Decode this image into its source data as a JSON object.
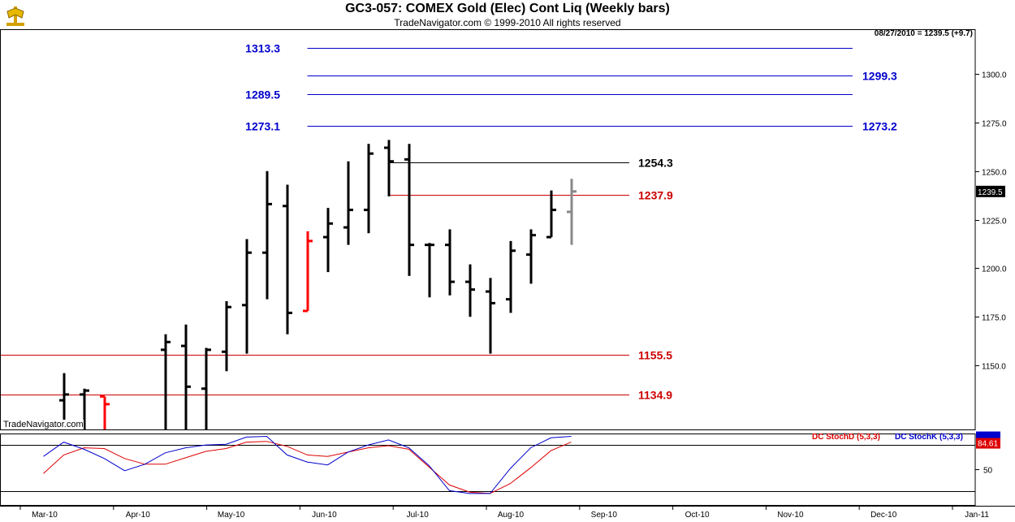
{
  "header": {
    "title": "GC3-057:  COMEX Gold (Elec) Cont Liq  (Weekly bars)",
    "subtitle": "TradeNavigator.com © 1999-2010 All rights reserved",
    "last_info": "08/27/2010 = 1239.5 (+9.7)"
  },
  "watermark": "TradeNavigator.com",
  "chart_data": [
    {
      "type": "ohlc",
      "title": "GC3-057:  COMEX Gold (Elec) Cont Liq  (Weekly bars)",
      "ylim": [
        1117,
        1323
      ],
      "y_ticks": [
        1150.0,
        1175.0,
        1200.0,
        1225.0,
        1250.0,
        1275.0,
        1300.0
      ],
      "y_tick_labels": [
        "1150.0",
        "1175.0",
        "1200.0",
        "1225.0",
        "1250.0",
        "1275.0",
        "1300.0"
      ],
      "x_labels": [
        "Mar-10",
        "Apr-10",
        "May-10",
        "Jun-10",
        "Jul-10",
        "Aug-10",
        "Sep-10",
        "Oct-10",
        "Nov-10",
        "Dec-10",
        "Jan-11"
      ],
      "last_price_label": "1239.5",
      "colors": {
        "up": "#000000",
        "highlight": "#ff0000",
        "current": "#888888",
        "blue_level": "#0000cc",
        "red_level": "#cc0000"
      },
      "bars": [
        {
          "week": 2,
          "o": 1132.0,
          "h": 1146.0,
          "l": 1117.0,
          "c": 1135.0,
          "color": "black"
        },
        {
          "week": 3,
          "o": 1135.0,
          "h": 1138.0,
          "l": 1117.0,
          "c": 1137.0,
          "color": "black"
        },
        {
          "week": 4,
          "o": 1134.0,
          "h": 1134.0,
          "l": 1117.0,
          "c": 1130.0,
          "color": "red"
        },
        {
          "week": 7,
          "o": 1158.0,
          "h": 1166.0,
          "l": 1117.0,
          "c": 1162.0,
          "color": "black"
        },
        {
          "week": 8,
          "o": 1160.0,
          "h": 1171.0,
          "l": 1117.0,
          "c": 1139.0,
          "color": "black"
        },
        {
          "week": 9,
          "o": 1138.0,
          "h": 1159.0,
          "l": 1117.0,
          "c": 1158.0,
          "color": "black"
        },
        {
          "week": 10,
          "o": 1157.0,
          "h": 1183.0,
          "l": 1147.0,
          "c": 1180.0,
          "color": "black"
        },
        {
          "week": 11,
          "o": 1181.0,
          "h": 1215.0,
          "l": 1156.0,
          "c": 1208.0,
          "color": "black"
        },
        {
          "week": 12,
          "o": 1208.0,
          "h": 1250.0,
          "l": 1184.0,
          "c": 1233.0,
          "color": "black"
        },
        {
          "week": 13,
          "o": 1232.0,
          "h": 1243.0,
          "l": 1166.0,
          "c": 1177.0,
          "color": "black"
        },
        {
          "week": 14,
          "o": 1178.0,
          "h": 1219.0,
          "l": 1178.0,
          "c": 1214.0,
          "color": "red"
        },
        {
          "week": 15,
          "o": 1216.0,
          "h": 1231.0,
          "l": 1198.0,
          "c": 1223.0,
          "color": "black"
        },
        {
          "week": 16,
          "o": 1221.0,
          "h": 1255.0,
          "l": 1212.0,
          "c": 1230.0,
          "color": "black"
        },
        {
          "week": 17,
          "o": 1230.0,
          "h": 1264.0,
          "l": 1218.0,
          "c": 1259.0,
          "color": "black"
        },
        {
          "week": 18,
          "o": 1262.0,
          "h": 1266.0,
          "l": 1237.0,
          "c": 1255.0,
          "color": "black"
        },
        {
          "week": 19,
          "o": 1256.0,
          "h": 1264.0,
          "l": 1196.0,
          "c": 1212.0,
          "color": "black"
        },
        {
          "week": 20,
          "o": 1212.0,
          "h": 1213.0,
          "l": 1185.0,
          "c": 1212.0,
          "color": "black"
        },
        {
          "week": 21,
          "o": 1212.0,
          "h": 1220.0,
          "l": 1186.0,
          "c": 1193.0,
          "color": "black"
        },
        {
          "week": 22,
          "o": 1193.0,
          "h": 1202.0,
          "l": 1175.0,
          "c": 1189.0,
          "color": "black"
        },
        {
          "week": 23,
          "o": 1188.0,
          "h": 1195.0,
          "l": 1156.0,
          "c": 1182.0,
          "color": "black"
        },
        {
          "week": 24,
          "o": 1184.0,
          "h": 1214.0,
          "l": 1177.0,
          "c": 1209.0,
          "color": "black"
        },
        {
          "week": 25,
          "o": 1207.0,
          "h": 1220.0,
          "l": 1192.0,
          "c": 1217.0,
          "color": "black"
        },
        {
          "week": 26,
          "o": 1216.0,
          "h": 1240.0,
          "l": 1216.0,
          "c": 1230.0,
          "color": "black"
        },
        {
          "week": 27,
          "o": 1229.0,
          "h": 1246.0,
          "l": 1212.0,
          "c": 1239.5,
          "color": "gray"
        }
      ],
      "levels": [
        {
          "value": 1313.3,
          "label": "1313.3",
          "label_side": "left",
          "color": "blue",
          "from_week": 14,
          "to_week": 40
        },
        {
          "value": 1299.3,
          "label": "1299.3",
          "label_side": "right",
          "color": "blue",
          "from_week": 14,
          "to_week": 40
        },
        {
          "value": 1289.5,
          "label": "1289.5",
          "label_side": "left",
          "color": "blue",
          "from_week": 14,
          "to_week": 40
        },
        {
          "value": 1273.15,
          "label": "1273.1",
          "label_side": "left",
          "color": "blue",
          "from_week": 14,
          "to_week": 40
        },
        {
          "value": 1273.15,
          "label": "1273.2",
          "label_side": "right",
          "color": "blue",
          "from_week": 14,
          "to_week": 40,
          "no_line": true
        },
        {
          "value": 1254.3,
          "label": "1254.3",
          "label_side": "right_near",
          "color": "black",
          "from_week": 18,
          "to_week": 30
        },
        {
          "value": 1237.9,
          "label": "1237.9",
          "label_side": "right_near",
          "color": "red",
          "from_week": 18,
          "to_week": 30
        },
        {
          "value": 1155.5,
          "label": "1155.5",
          "label_side": "right_near",
          "color": "red",
          "from_week": 0,
          "to_week": 30
        },
        {
          "value": 1134.9,
          "label": "1134.9",
          "label_side": "right_near",
          "color": "red",
          "from_week": 0,
          "to_week": 30
        }
      ]
    },
    {
      "type": "line",
      "title": "",
      "series": [
        {
          "name": "DC StochD (5,3,3)",
          "color": "#dd0000",
          "values": [
            44,
            70,
            80,
            79,
            65,
            57,
            57,
            66,
            75,
            79,
            88,
            89,
            82,
            70,
            68,
            74,
            80,
            83,
            78,
            53,
            28,
            18,
            16,
            30,
            52,
            76,
            88
          ]
        },
        {
          "name": "DC StochK (5,3,3)",
          "color": "#0000cc",
          "values": [
            68,
            88,
            78,
            65,
            48,
            57,
            73,
            80,
            84,
            85,
            95,
            96,
            70,
            60,
            56,
            74,
            84,
            91,
            80,
            55,
            20,
            16,
            16,
            51,
            80,
            94,
            96
          ]
        }
      ],
      "ylim": [
        0,
        100
      ],
      "y_ticks": [
        50
      ],
      "y_tick_labels": [
        "50"
      ],
      "ref_lines": [
        84.61,
        19
      ],
      "last_values": [
        "84.61"
      ],
      "legend_labels": [
        "DC StochD (5,3,3)",
        "DC StochK (5,3,3)"
      ]
    }
  ]
}
